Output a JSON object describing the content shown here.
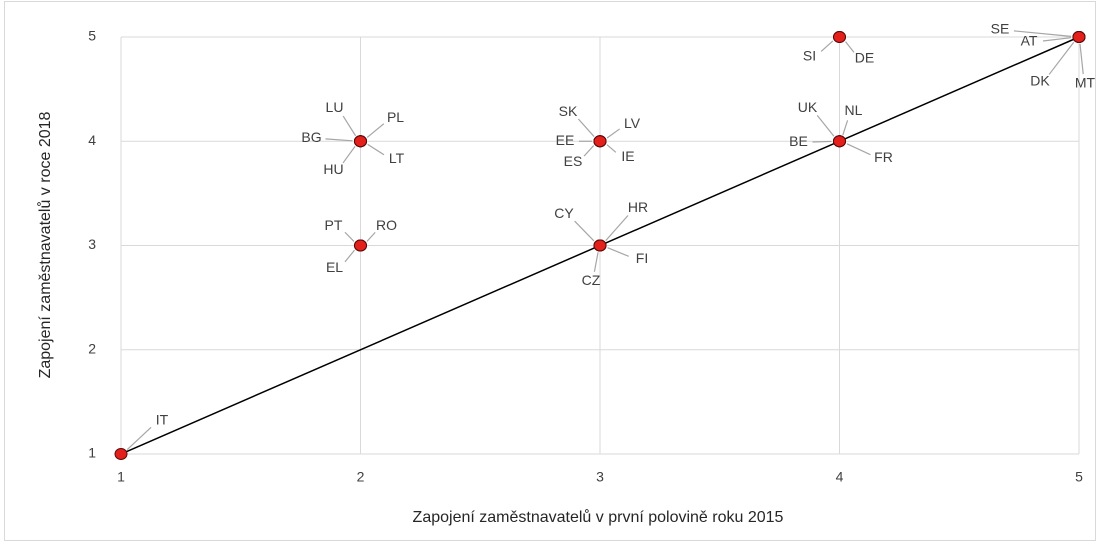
{
  "chart_data": {
    "type": "scatter",
    "xlabel": "Zapojení zaměstnavatelů v první polovině roku 2015",
    "ylabel": "Zapojení zaměstnavatelů v roce 2018",
    "point_labels": [
      "IT",
      "PT",
      "RO",
      "EL",
      "LU",
      "PL",
      "BG",
      "HU",
      "LT",
      "SK",
      "LV",
      "EE",
      "IE",
      "ES",
      "CY",
      "HR",
      "FI",
      "CZ",
      "SI",
      "DE",
      "UK",
      "NL",
      "BE",
      "FR",
      "SE",
      "AT",
      "DK",
      "MT"
    ],
    "x": [
      1,
      2,
      2,
      2,
      2,
      2,
      2,
      2,
      2,
      3,
      3,
      3,
      3,
      3,
      3,
      3,
      3,
      3,
      4,
      4,
      4,
      4,
      4,
      4,
      5,
      5,
      5,
      5
    ],
    "values": [
      1,
      3,
      3,
      3,
      4,
      4,
      4,
      4,
      4,
      4,
      4,
      4,
      4,
      4,
      3,
      3,
      3,
      3,
      5,
      5,
      4,
      4,
      4,
      4,
      5,
      5,
      5,
      5
    ],
    "color": "#e3201b",
    "reference_line": {
      "x": [
        1,
        5
      ],
      "values": [
        1,
        5
      ],
      "color": "#000000"
    },
    "xlim": [
      1,
      5
    ],
    "xticks": [
      1,
      2,
      3,
      4,
      5
    ],
    "ylim": [
      1,
      5
    ],
    "yticks": [
      1,
      2,
      3,
      4,
      5
    ],
    "grid": true
  }
}
